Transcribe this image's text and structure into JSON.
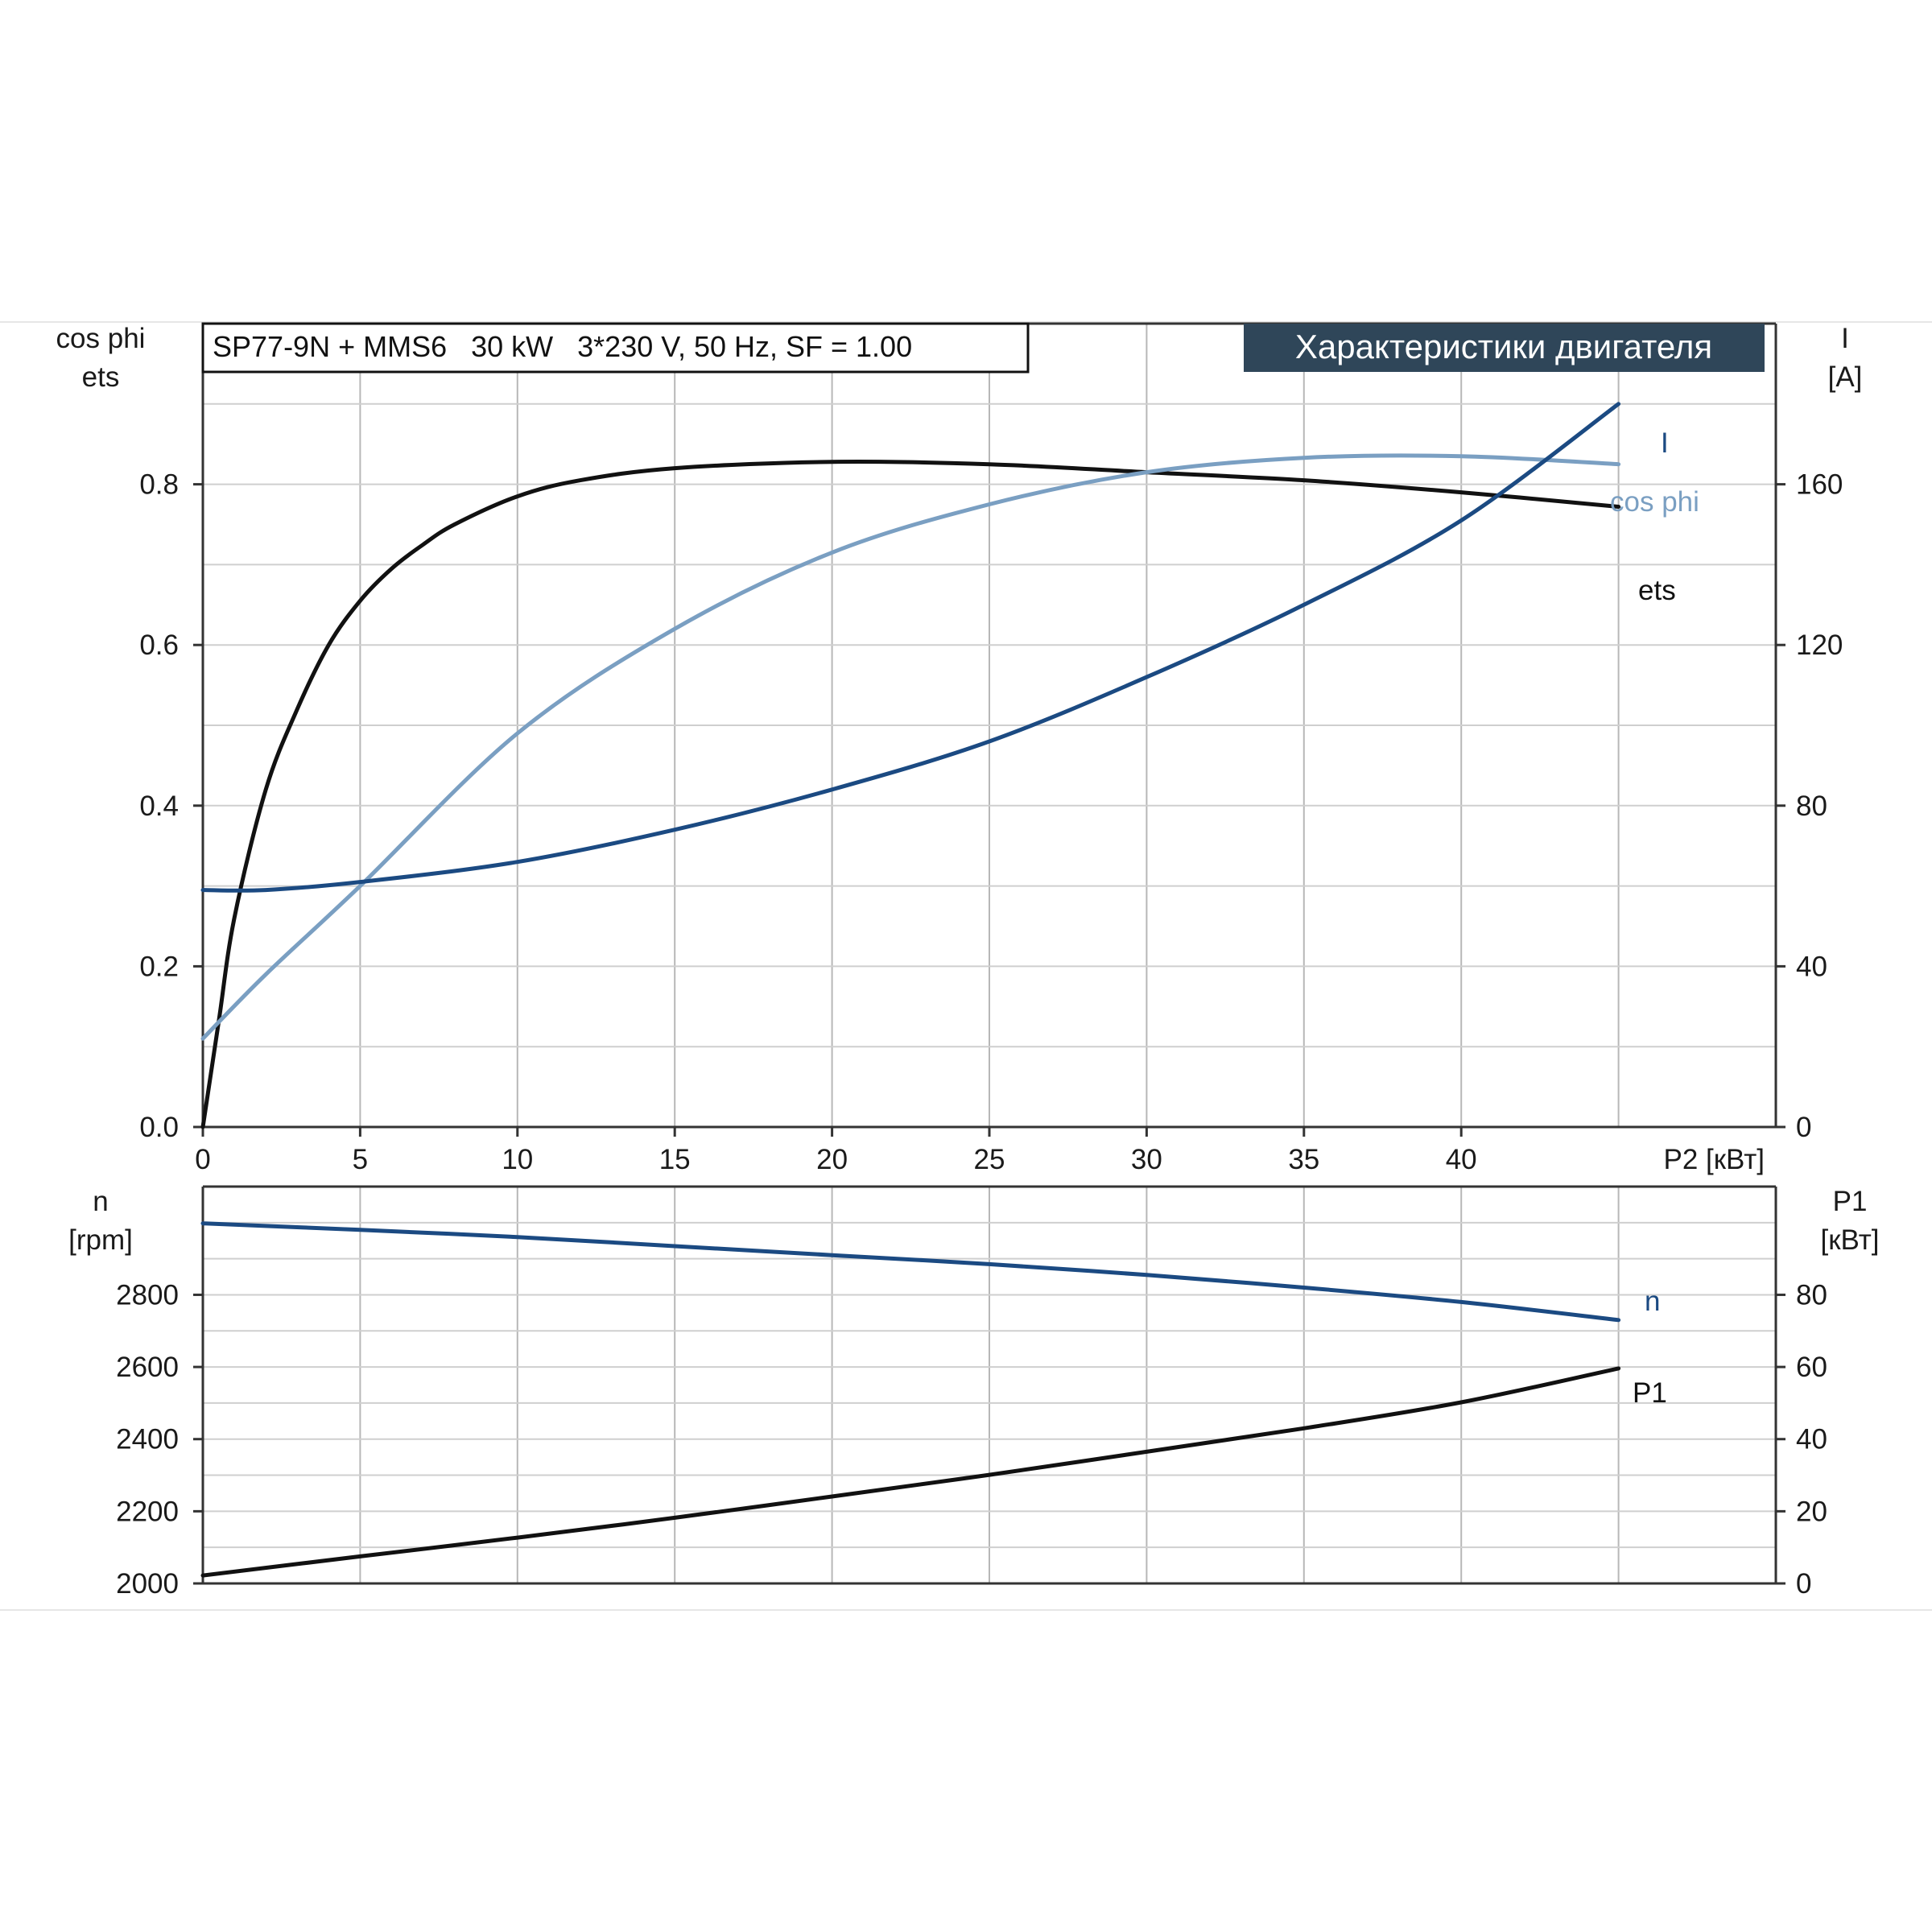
{
  "colors": {
    "black": "#111111",
    "dark_blue": "#1b4a82",
    "light_blue": "#7a9fc2",
    "title_bg": "#2f4659",
    "title_fg": "#ffffff",
    "grid": "#bdbdbd"
  },
  "header": {
    "model_label": "SP77-9N + MMS6   30 kW   3*230 V, 50 Hz, SF = 1.00",
    "title": "Характеристики двигателя"
  },
  "chart_data": [
    {
      "id": "upper",
      "type": "line",
      "xlabel": "P2 [кВт]",
      "xlim": [
        0,
        50
      ],
      "xticks": [
        0,
        5,
        10,
        15,
        20,
        25,
        30,
        35,
        40
      ],
      "ylabel_left": [
        "cos phi",
        "ets"
      ],
      "ylim_left": [
        0,
        1.0
      ],
      "yticks_left": [
        0.0,
        0.2,
        0.4,
        0.6,
        0.8
      ],
      "ylabel_right": [
        "I",
        "[A]"
      ],
      "ylim_right": [
        0,
        200
      ],
      "yticks_right": [
        0,
        40,
        80,
        120,
        160
      ],
      "grid": true,
      "series": [
        {
          "name": "ets",
          "axis": "left",
          "color": "#111111",
          "x": [
            0,
            0.5,
            1,
            2,
            3,
            4,
            5,
            6,
            7,
            8,
            10,
            12,
            15,
            20,
            25,
            30,
            35,
            40,
            45
          ],
          "y": [
            0.0,
            0.13,
            0.26,
            0.42,
            0.52,
            0.6,
            0.655,
            0.695,
            0.725,
            0.75,
            0.785,
            0.805,
            0.82,
            0.828,
            0.825,
            0.815,
            0.805,
            0.79,
            0.772
          ]
        },
        {
          "name": "cos phi",
          "axis": "left",
          "color": "#7a9fc2",
          "x": [
            0,
            2,
            5,
            10,
            15,
            20,
            25,
            30,
            35,
            40,
            45
          ],
          "y": [
            0.11,
            0.19,
            0.3,
            0.49,
            0.62,
            0.715,
            0.775,
            0.815,
            0.833,
            0.835,
            0.825
          ]
        },
        {
          "name": "I",
          "axis": "right",
          "color": "#1b4a82",
          "x": [
            0,
            2,
            5,
            10,
            15,
            20,
            25,
            30,
            35,
            40,
            45
          ],
          "y": [
            59,
            59,
            61,
            66,
            74,
            84,
            96,
            112,
            130,
            151,
            180
          ]
        }
      ]
    },
    {
      "id": "lower",
      "type": "line",
      "xlim": [
        0,
        50
      ],
      "ylabel_left": [
        "n",
        "[rpm]"
      ],
      "ylim_left": [
        2000,
        3100
      ],
      "yticks_left": [
        2000,
        2200,
        2400,
        2600,
        2800
      ],
      "ylabel_right": [
        "P1",
        "[кВт]"
      ],
      "ylim_right": [
        0,
        110
      ],
      "yticks_right": [
        0,
        20,
        40,
        60,
        80
      ],
      "grid": true,
      "series": [
        {
          "name": "n",
          "axis": "left",
          "color": "#1b4a82",
          "x": [
            0,
            5,
            10,
            15,
            20,
            25,
            30,
            35,
            40,
            45
          ],
          "y": [
            2998,
            2980,
            2960,
            2935,
            2910,
            2885,
            2855,
            2820,
            2780,
            2730
          ]
        },
        {
          "name": "P1",
          "axis": "right",
          "color": "#111111",
          "x": [
            0,
            5,
            10,
            15,
            20,
            25,
            30,
            35,
            40,
            45
          ],
          "y": [
            2.2,
            7.5,
            12.7,
            18.2,
            24.1,
            30.1,
            36.5,
            43.0,
            50.2,
            59.6
          ]
        }
      ]
    }
  ]
}
